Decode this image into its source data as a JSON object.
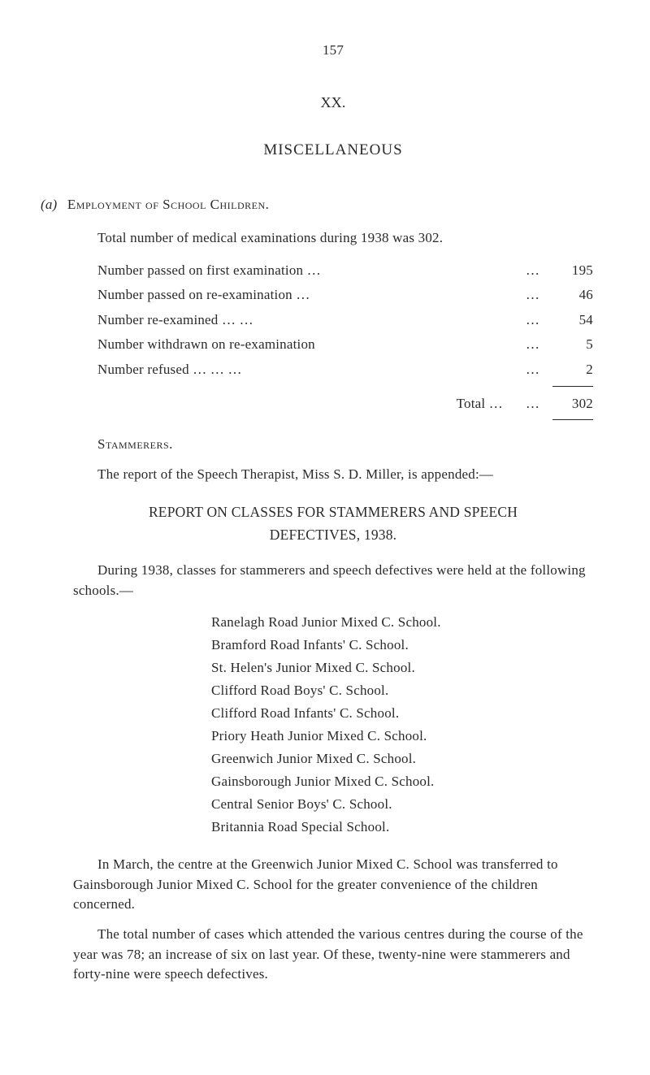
{
  "page_number": "157",
  "chapter_number": "XX.",
  "main_title": "MISCELLANEOUS",
  "section_a": {
    "label": "(a)",
    "heading": "Employment of School Children.",
    "intro": "Total number of medical examinations during 1938 was 302.",
    "rows": [
      {
        "label": "Number passed on first examination …",
        "dots": "…",
        "value": "195"
      },
      {
        "label": "Number passed on re-examination    …",
        "dots": "…",
        "value": "46"
      },
      {
        "label": "Number re-examined              …            …",
        "dots": "…",
        "value": "54"
      },
      {
        "label": "Number withdrawn on re-examination",
        "dots": "…",
        "value": "5"
      },
      {
        "label": "Number refused    …            …            …",
        "dots": "…",
        "value": "2"
      }
    ],
    "total_label": "Total  …",
    "total_dots": "…",
    "total_value": "302"
  },
  "stammerers": {
    "heading": "Stammerers.",
    "para": "The report of the Speech Therapist, Miss S. D. Miller, is appended:—"
  },
  "report": {
    "title_line1": "REPORT ON CLASSES FOR STAMMERERS AND SPEECH",
    "title_line2": "DEFECTIVES, 1938.",
    "intro": "During 1938, classes for stammerers and speech defectives were held at the following schools.—",
    "schools": [
      "Ranelagh Road Junior Mixed C. School.",
      "Bramford Road Infants' C. School.",
      "St. Helen's Junior Mixed C. School.",
      "Clifford Road Boys' C. School.",
      "Clifford Road Infants' C. School.",
      "Priory Heath Junior Mixed C. School.",
      "Greenwich Junior Mixed C. School.",
      "Gainsborough Junior Mixed C. School.",
      "Central Senior Boys' C. School.",
      "Britannia Road Special School."
    ],
    "para1": "In March, the centre at the Greenwich Junior Mixed C. School was transferred to Gainsborough Junior Mixed C. School for the greater convenience of the children concerned.",
    "para2": "The total number of cases which attended the various centres during the course of the year was 78; an increase of six on last year. Of these, twenty-nine were stammerers and forty-nine were speech defectives."
  }
}
